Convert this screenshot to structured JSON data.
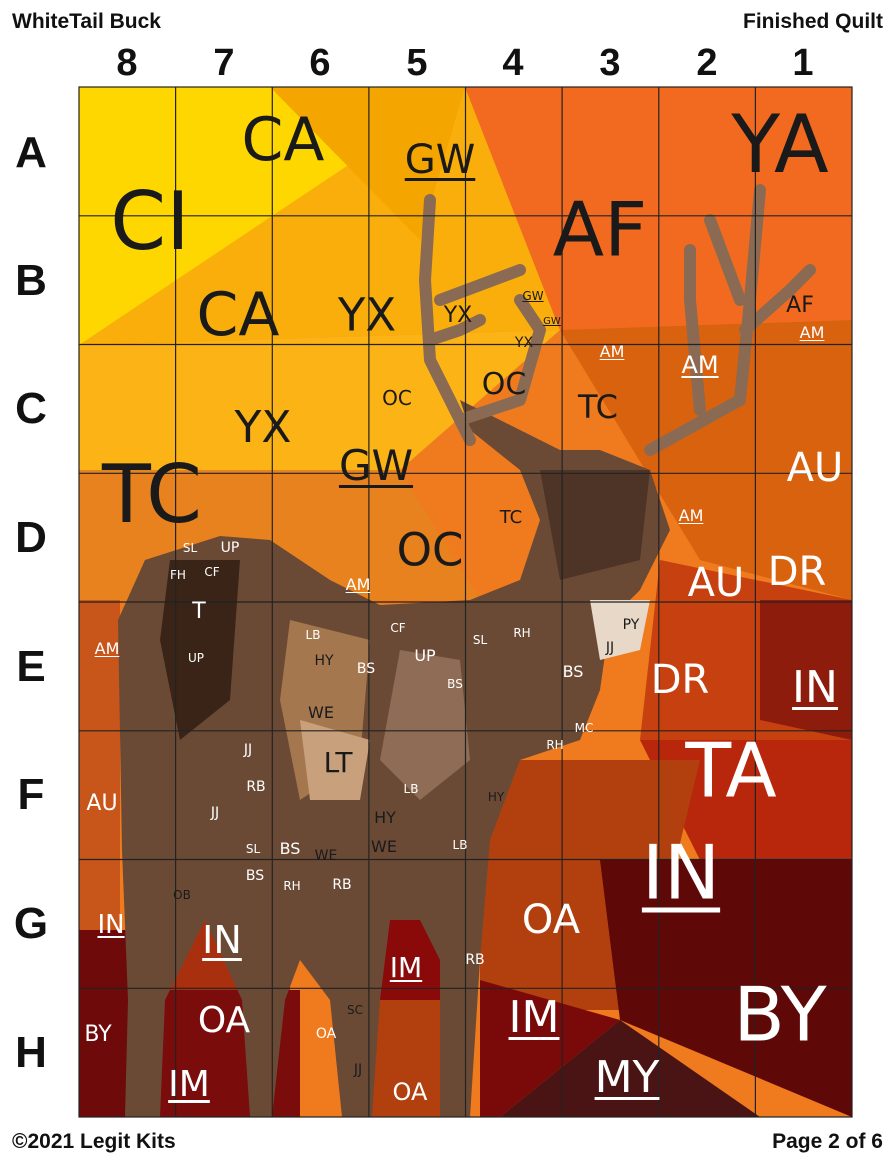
{
  "header": {
    "title_left": "WhiteTail Buck",
    "title_right": "Finished Quilt"
  },
  "footer": {
    "copyright": "©2021 Legit Kits",
    "page": "Page 2 of 6"
  },
  "columns": [
    "8",
    "7",
    "6",
    "5",
    "4",
    "3",
    "2",
    "1"
  ],
  "rows": [
    "A",
    "B",
    "C",
    "D",
    "E",
    "F",
    "G",
    "H"
  ],
  "colors": {
    "yellow": "#FFE100",
    "gold": "#FBB316",
    "orange": "#F07A1E",
    "red_orange": "#E0561A",
    "rust": "#B8320F",
    "dark_red": "#6E0A0A",
    "maroon": "#4A1414",
    "deer_brown": "#6B4A35",
    "grid": "#222222"
  },
  "labels": [
    {
      "t": "CA"
    },
    {
      "t": "GW"
    },
    {
      "t": "YA"
    },
    {
      "t": "CI"
    },
    {
      "t": "AF"
    },
    {
      "t": "CA"
    },
    {
      "t": "YX"
    },
    {
      "t": "YX"
    },
    {
      "t": "GW"
    },
    {
      "t": "GW"
    },
    {
      "t": "YX"
    },
    {
      "t": "AM"
    },
    {
      "t": "AM"
    },
    {
      "t": "AM"
    },
    {
      "t": "AF"
    },
    {
      "t": "OC"
    },
    {
      "t": "OC"
    },
    {
      "t": "TC"
    },
    {
      "t": "YX"
    },
    {
      "t": "GW"
    },
    {
      "t": "AU"
    },
    {
      "t": "TC"
    },
    {
      "t": "TC"
    },
    {
      "t": "AM"
    },
    {
      "t": "OC"
    },
    {
      "t": "DR"
    },
    {
      "t": "AU"
    },
    {
      "t": "AM"
    },
    {
      "t": "AM"
    },
    {
      "t": "DR"
    },
    {
      "t": "IN"
    },
    {
      "t": "TA"
    },
    {
      "t": "AU"
    },
    {
      "t": "IN"
    },
    {
      "t": "OA"
    },
    {
      "t": "IN"
    },
    {
      "t": "IN"
    },
    {
      "t": "IM"
    },
    {
      "t": "BY"
    },
    {
      "t": "IM"
    },
    {
      "t": "OA"
    },
    {
      "t": "BY"
    },
    {
      "t": "MY"
    },
    {
      "t": "IM"
    },
    {
      "t": "OA"
    }
  ],
  "deer_labels": [
    {
      "t": "UP"
    },
    {
      "t": "T"
    },
    {
      "t": "UP"
    },
    {
      "t": "CF"
    },
    {
      "t": "JJ"
    },
    {
      "t": "PY"
    },
    {
      "t": "RH"
    },
    {
      "t": "BS"
    },
    {
      "t": "LB"
    },
    {
      "t": "HY"
    },
    {
      "t": "WE"
    },
    {
      "t": "BS"
    },
    {
      "t": "LT"
    },
    {
      "t": "JJ"
    },
    {
      "t": "RB"
    },
    {
      "t": "LB"
    },
    {
      "t": "HY"
    },
    {
      "t": "WE"
    },
    {
      "t": "BS"
    },
    {
      "t": "WE"
    },
    {
      "t": "OB"
    },
    {
      "t": "BS"
    },
    {
      "t": "RB"
    },
    {
      "t": "RH"
    },
    {
      "t": "JJ"
    },
    {
      "t": "SL"
    },
    {
      "t": "BS"
    },
    {
      "t": "LB"
    },
    {
      "t": "SL"
    },
    {
      "t": "FH"
    },
    {
      "t": "CF"
    },
    {
      "t": "HY"
    },
    {
      "t": "RH"
    },
    {
      "t": "OA"
    },
    {
      "t": "SC"
    },
    {
      "t": "JJ"
    },
    {
      "t": "RB"
    },
    {
      "t": "SL"
    },
    {
      "t": "UP"
    },
    {
      "t": "MC"
    }
  ]
}
